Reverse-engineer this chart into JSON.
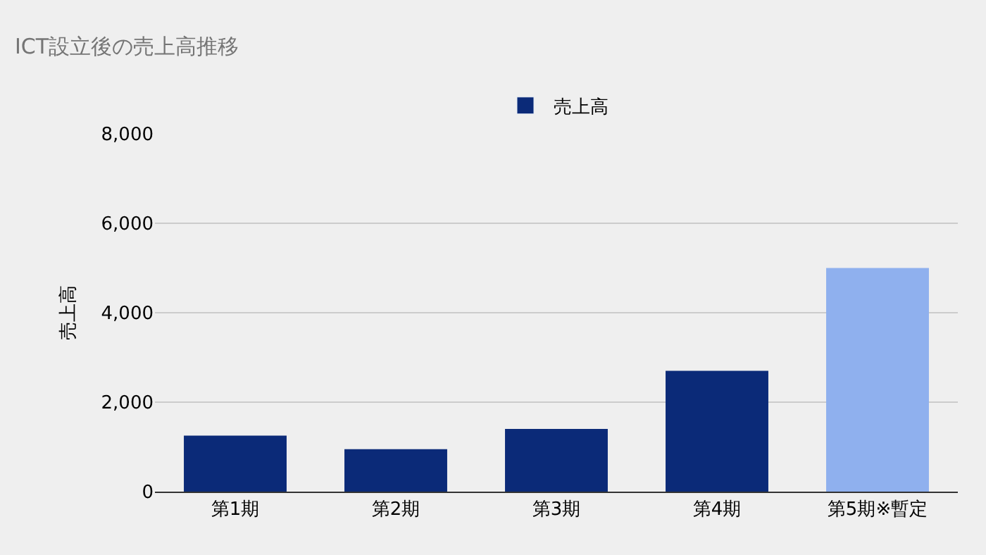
{
  "chart_data": {
    "type": "bar",
    "title": "ICT設立後の売上高推移",
    "ylabel": "売上高",
    "categories": [
      "第1期",
      "第2期",
      "第3期",
      "第4期",
      "第5期※暫定"
    ],
    "series": [
      {
        "name": "売上高",
        "color": "#0b2a78",
        "colors": [
          "#0b2a78",
          "#0b2a78",
          "#0b2a78",
          "#0b2a78",
          "#8fb0ee"
        ],
        "values": [
          1250,
          950,
          1400,
          2700,
          5000
        ]
      }
    ],
    "ylim": [
      0,
      8000
    ],
    "yticks": [
      {
        "value": 0,
        "label": "0"
      },
      {
        "value": 2000,
        "label": "2,000"
      },
      {
        "value": 4000,
        "label": "4,000"
      },
      {
        "value": 6000,
        "label": "6,000"
      },
      {
        "value": 8000,
        "label": "8,000"
      }
    ],
    "grid": "y",
    "legend": "top"
  }
}
